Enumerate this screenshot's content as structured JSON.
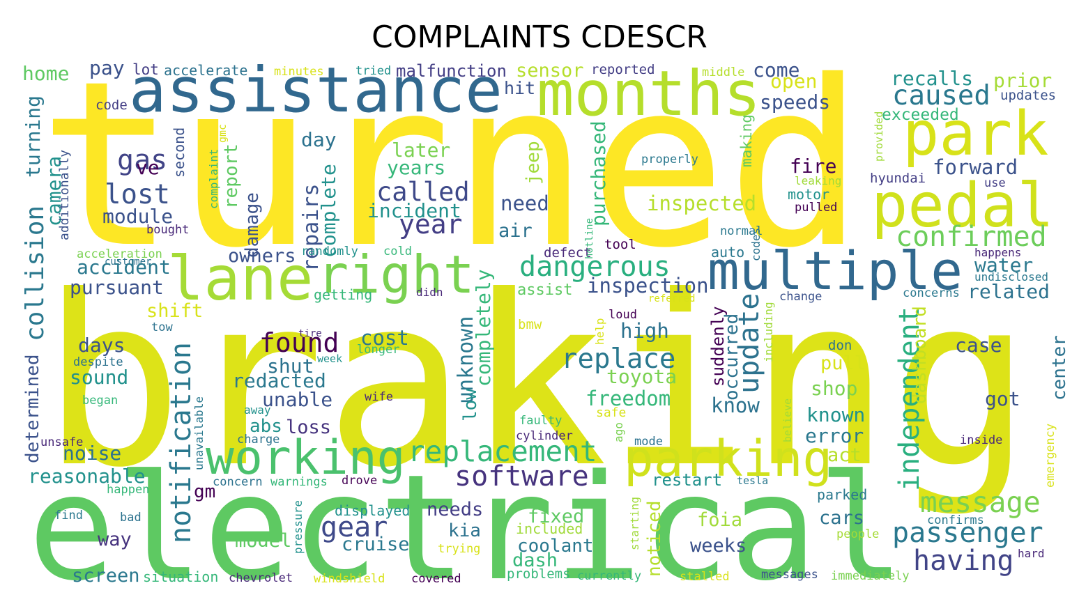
{
  "title": "COMPLAINTS CDESCR",
  "words": [
    "turned",
    "braking",
    "electrical",
    "assistance",
    "months",
    "park",
    "pedal",
    "lane",
    "right",
    "multiple",
    "working",
    "parking",
    "replacement",
    "software",
    "dangerous",
    "caused",
    "recalls",
    "prior",
    "confirmed",
    "called",
    "lost",
    "found",
    "gas",
    "year",
    "update",
    "message",
    "passenger",
    "having",
    "independent",
    "notification",
    "collision",
    "turning",
    "determined",
    "camera",
    "additionally",
    "gear",
    "replace",
    "foia",
    "cars",
    "weeks",
    "coolant",
    "fixed",
    "dash",
    "kia",
    "needs",
    "cruise",
    "displayed",
    "model",
    "way",
    "screen",
    "situation",
    "chevrolet",
    "windshield",
    "covered",
    "problems",
    "currently",
    "stalled",
    "messages",
    "immediately",
    "hard",
    "people",
    "confirms",
    "parked",
    "tesla",
    "restart",
    "mode",
    "freedom",
    "toyota",
    "high",
    "inspection",
    "assist",
    "air",
    "need",
    "jeep",
    "purchased",
    "inspected",
    "making",
    "fire",
    "forward",
    "hyundai",
    "water",
    "related",
    "undisclosed",
    "concerns",
    "happens",
    "case",
    "center",
    "emergency",
    "inside",
    "got",
    "dashboard",
    "known",
    "error",
    "act",
    "pull",
    "shop",
    "don",
    "know",
    "suddenly",
    "occurred",
    "including",
    "help",
    "ago",
    "safe",
    "faulty",
    "cylinder",
    "bmw",
    "unknown",
    "low",
    "completely",
    "complete",
    "repairs",
    "report",
    "damage",
    "second",
    "complaint",
    "gmc",
    "ve",
    "day",
    "later",
    "years",
    "incident",
    "module",
    "owners",
    "randomly",
    "cold",
    "defect",
    "tool",
    "auto",
    "codes",
    "normal",
    "hotline",
    "motor",
    "leaking",
    "pulled",
    "properly",
    "use",
    "provided",
    "updates",
    "exceeded",
    "speeds",
    "open",
    "come",
    "middle",
    "reported",
    "sensor",
    "malfunction",
    "hit",
    "tried",
    "minutes",
    "accelerate",
    "lot",
    "pay",
    "home",
    "code",
    "acceleration",
    "customer",
    "bought",
    "accident",
    "pursuant",
    "shift",
    "tow",
    "days",
    "sound",
    "despite",
    "began",
    "unsafe",
    "noise",
    "reasonable",
    "happen",
    "find",
    "bad",
    "gm",
    "unavailable",
    "abs",
    "loss",
    "charge",
    "away",
    "unable",
    "redacted",
    "shut",
    "getting",
    "didn",
    "tire",
    "longer",
    "cost",
    "wife",
    "pressure",
    "concern",
    "warnings",
    "drove",
    "trying",
    "included",
    "starting",
    "noticed",
    "referred",
    "loud",
    "change",
    "believe",
    "week"
  ]
}
